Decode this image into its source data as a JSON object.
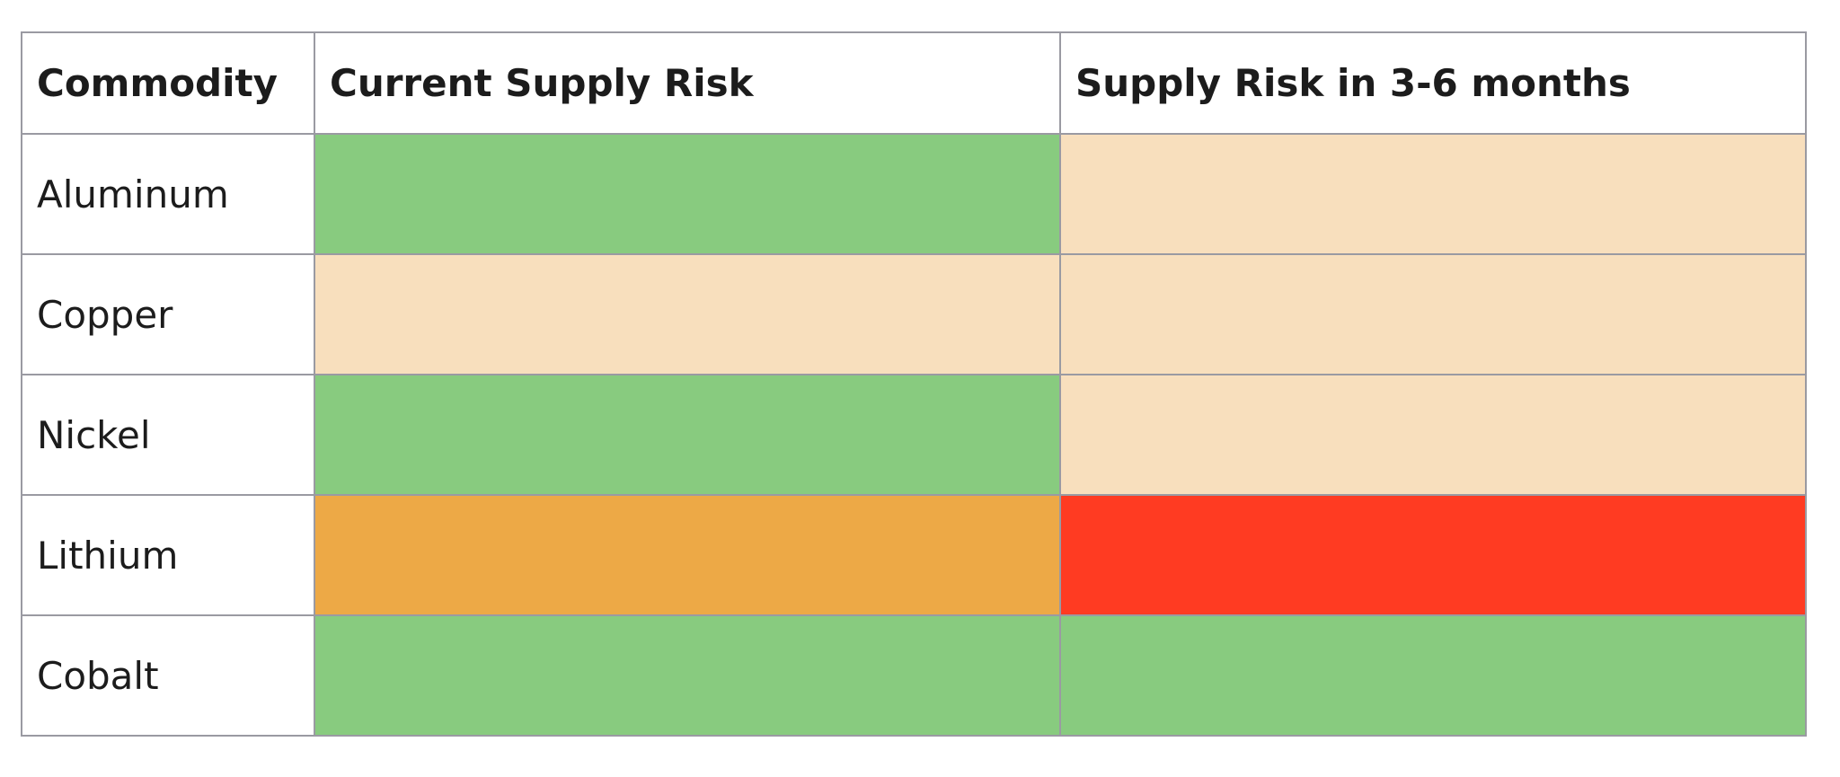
{
  "table": {
    "header": [
      "Commodity",
      "Current Supply Risk",
      "Supply Risk in 3-6 months"
    ],
    "rows": [
      {
        "commodity": "Aluminum",
        "current_color": "#88cb7f",
        "future_color": "#f8dfbd"
      },
      {
        "commodity": "Copper",
        "current_color": "#f8dfbd",
        "future_color": "#f8dfbd"
      },
      {
        "commodity": "Nickel",
        "current_color": "#88cb7f",
        "future_color": "#f8dfbd"
      },
      {
        "commodity": "Lithium",
        "current_color": "#eda946",
        "future_color": "#ff3b22"
      },
      {
        "commodity": "Cobalt",
        "current_color": "#88cb7f",
        "future_color": "#88cb7f"
      }
    ]
  }
}
